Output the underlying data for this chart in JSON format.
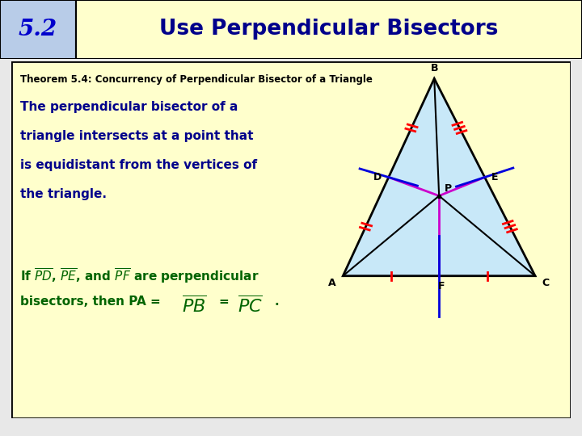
{
  "title_num": "5.2",
  "title_text": "Use Perpendicular Bisectors",
  "theorem_title": "Theorem 5.4: Concurrency of Perpendicular Bisector of a Triangle",
  "body_text_lines": [
    "The perpendicular bisector of a",
    "triangle intersects at a point that",
    "is equidistant from the vertices of",
    "the triangle."
  ],
  "bg_header_num": "#b8cce8",
  "bg_header_title": "#ffffcc",
  "bg_main": "#ffffcc",
  "header_num_color": "#0000cc",
  "header_title_color": "#00008b",
  "theorem_title_color": "#000000",
  "body_text_color": "#00008b",
  "bottom_text_color": "#006400",
  "triangle_fill": "#c8e8f8",
  "triangle_stroke": "#000000",
  "bisector_color": "#cc00cc",
  "blue_color": "#0000dd",
  "tick_color": "#ff0000",
  "outer_bg": "#e8e8e8"
}
